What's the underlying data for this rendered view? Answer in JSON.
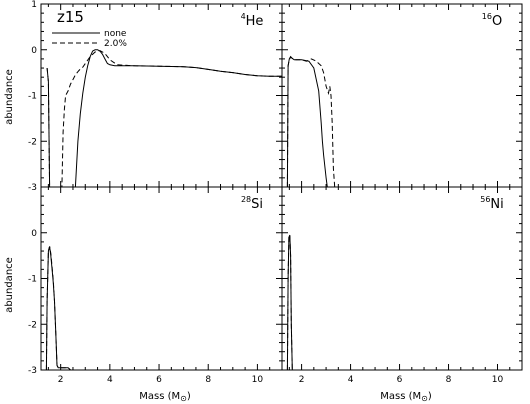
{
  "figure": {
    "note": "z15",
    "legend": [
      {
        "label": "none",
        "dash": "solid"
      },
      {
        "label": "2.0%",
        "dash": "dashed"
      }
    ],
    "ylabel": "abundance",
    "xlabel_main": "Mass (M",
    "xlabel_sun": "⊙",
    "xlabel_close": ")"
  },
  "chart_data": [
    {
      "type": "line",
      "panel": "top-left",
      "label_sup": "4",
      "label_main": "He",
      "label_pos": "top-right",
      "xlim": [
        1.2,
        11
      ],
      "ylim": [
        -3,
        1
      ],
      "xticks": [],
      "yticks": [
        -3,
        -2,
        -1,
        0,
        1
      ],
      "series": [
        {
          "dash": "solid",
          "x": [
            1.45,
            1.5,
            1.55,
            1.6,
            2.6,
            2.7,
            2.8,
            2.9,
            3.0,
            3.1,
            3.2,
            3.3,
            3.4,
            3.5,
            3.6,
            3.7,
            3.8,
            3.9,
            4.0,
            4.2,
            5.0,
            6.0,
            7.0,
            7.5,
            8.0,
            8.5,
            9.0,
            9.5,
            10.0,
            10.5,
            11.0
          ],
          "y": [
            -0.4,
            -0.7,
            -3.0,
            -3.0,
            -3.0,
            -2.0,
            -1.4,
            -0.95,
            -0.6,
            -0.35,
            -0.15,
            -0.03,
            0.0,
            0.0,
            -0.03,
            -0.1,
            -0.2,
            -0.3,
            -0.33,
            -0.35,
            -0.35,
            -0.36,
            -0.37,
            -0.39,
            -0.43,
            -0.47,
            -0.5,
            -0.54,
            -0.57,
            -0.58,
            -0.58
          ]
        },
        {
          "dash": "dashed",
          "x": [
            1.45,
            1.5,
            1.55,
            2.05,
            2.1,
            2.15,
            2.2,
            2.3,
            2.4,
            2.5,
            2.6,
            2.7,
            2.8,
            2.9,
            3.0,
            3.2,
            3.4,
            3.6,
            3.8,
            4.0,
            4.3,
            5.0,
            6.0,
            7.0,
            7.5,
            8.0,
            8.5,
            9.0,
            9.5,
            10.0,
            10.5,
            11.0
          ],
          "y": [
            -0.4,
            -0.7,
            -3.0,
            -3.0,
            -1.8,
            -1.3,
            -1.0,
            -0.9,
            -0.75,
            -0.65,
            -0.55,
            -0.48,
            -0.42,
            -0.38,
            -0.3,
            -0.15,
            -0.05,
            -0.02,
            -0.08,
            -0.22,
            -0.33,
            -0.35,
            -0.36,
            -0.37,
            -0.39,
            -0.43,
            -0.47,
            -0.5,
            -0.54,
            -0.57,
            -0.58,
            -0.58
          ]
        }
      ]
    },
    {
      "type": "line",
      "panel": "top-right",
      "label_sup": "16",
      "label_main": "O",
      "label_pos": "top-right",
      "xlim": [
        1.2,
        11
      ],
      "ylim": [
        -3,
        1
      ],
      "xticks": [],
      "yticks": [],
      "series": [
        {
          "dash": "solid",
          "x": [
            1.42,
            1.45,
            1.5,
            1.55,
            1.6,
            1.7,
            1.8,
            2.0,
            2.3,
            2.5,
            2.7,
            2.8,
            2.85,
            2.9,
            3.0,
            3.05,
            3.1
          ],
          "y": [
            -3.0,
            -0.35,
            -0.2,
            -0.15,
            -0.18,
            -0.22,
            -0.22,
            -0.22,
            -0.25,
            -0.4,
            -0.9,
            -1.6,
            -2.0,
            -2.3,
            -2.8,
            -3.0,
            -3.0
          ]
        },
        {
          "dash": "dashed",
          "x": [
            1.42,
            1.45,
            1.5,
            1.55,
            1.6,
            1.7,
            1.8,
            2.0,
            2.2,
            2.4,
            2.6,
            2.8,
            2.9,
            3.0,
            3.1,
            3.15,
            3.2,
            3.25,
            3.3,
            3.35
          ],
          "y": [
            -3.0,
            -0.35,
            -0.22,
            -0.16,
            -0.18,
            -0.22,
            -0.22,
            -0.22,
            -0.25,
            -0.2,
            -0.25,
            -0.35,
            -0.5,
            -0.8,
            -0.95,
            -0.8,
            -1.0,
            -1.6,
            -2.6,
            -3.0
          ]
        }
      ]
    },
    {
      "type": "line",
      "panel": "bottom-left",
      "label_sup": "28",
      "label_main": "Si",
      "label_pos": "top-right",
      "xlim": [
        1.2,
        11
      ],
      "ylim": [
        -3,
        1
      ],
      "xticks": [
        2,
        4,
        6,
        8,
        10
      ],
      "yticks": [
        -3,
        -2,
        -1,
        0
      ],
      "series": [
        {
          "dash": "solid",
          "x": [
            1.42,
            1.45,
            1.5,
            1.55,
            1.6,
            1.65,
            1.7,
            1.75,
            1.8,
            1.85,
            1.9,
            2.0,
            2.3,
            2.4,
            2.45
          ],
          "y": [
            -3.0,
            -1.5,
            -0.4,
            -0.3,
            -0.5,
            -0.8,
            -1.1,
            -1.5,
            -2.2,
            -2.9,
            -2.95,
            -2.95,
            -2.95,
            -3.0,
            -3.0
          ]
        },
        {
          "dash": "dashed",
          "x": [
            1.42,
            1.45,
            1.5,
            1.55,
            1.6,
            1.65,
            1.7,
            1.75,
            1.8,
            1.85,
            1.9,
            2.0,
            2.3,
            2.4,
            2.45
          ],
          "y": [
            -3.0,
            -1.5,
            -0.4,
            -0.3,
            -0.45,
            -0.75,
            -1.05,
            -1.5,
            -2.2,
            -2.9,
            -2.95,
            -2.95,
            -2.95,
            -3.0,
            -3.0
          ]
        }
      ]
    },
    {
      "type": "line",
      "panel": "bottom-right",
      "label_sup": "56",
      "label_main": "Ni",
      "label_pos": "top-right",
      "xlim": [
        1.2,
        11
      ],
      "ylim": [
        -3,
        1
      ],
      "xticks": [
        2,
        4,
        6,
        8,
        10
      ],
      "yticks": [],
      "series": [
        {
          "dash": "solid",
          "x": [
            1.42,
            1.45,
            1.48,
            1.52,
            1.55,
            1.58,
            1.62
          ],
          "y": [
            -3.0,
            -1.0,
            -0.1,
            -0.05,
            -0.5,
            -2.0,
            -3.0
          ]
        },
        {
          "dash": "dashed",
          "x": [
            1.42,
            1.45,
            1.48,
            1.52,
            1.55,
            1.58,
            1.62
          ],
          "y": [
            -3.0,
            -1.0,
            -0.1,
            -0.05,
            -0.5,
            -2.0,
            -3.0
          ]
        }
      ]
    }
  ]
}
